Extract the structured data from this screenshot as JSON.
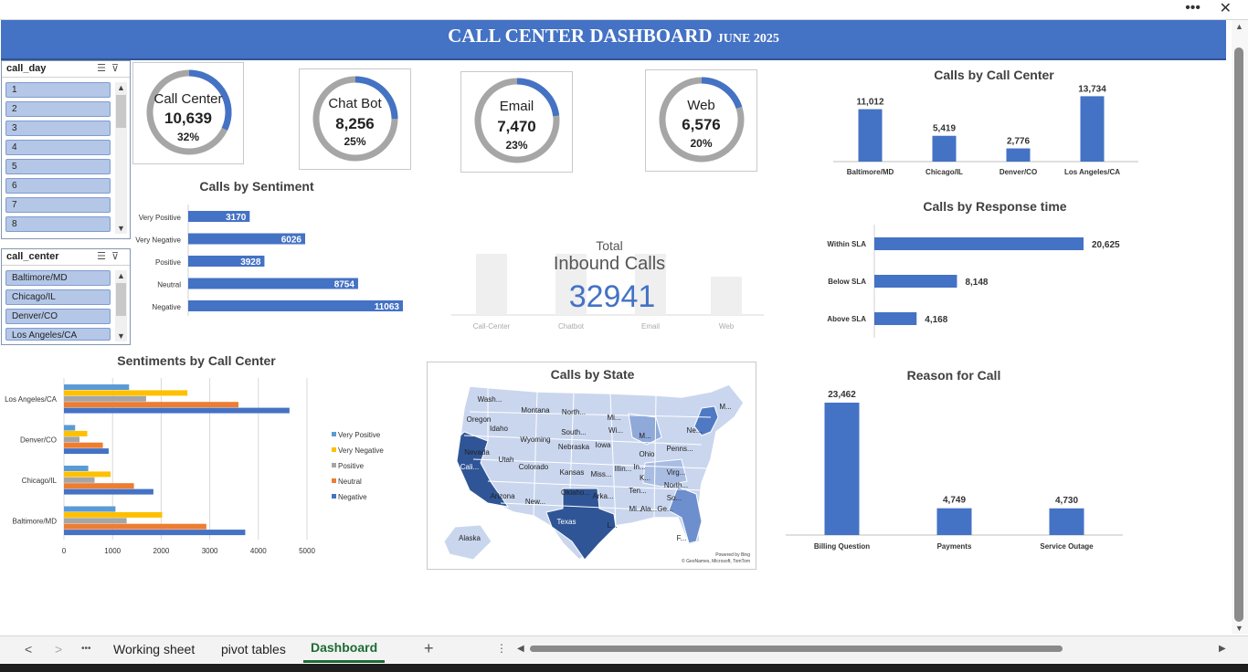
{
  "window": {
    "more_glyph": "•••",
    "close_glyph": "✕"
  },
  "banner": {
    "title": "CALL CENTER DASHBOARD",
    "subtitle": "JUNE 2025"
  },
  "slicers": [
    {
      "title": "call_day",
      "items": [
        "1",
        "2",
        "3",
        "4",
        "5",
        "6",
        "7",
        "8"
      ]
    },
    {
      "title": "call_center",
      "items": [
        "Baltimore/MD",
        "Chicago/IL",
        "Denver/CO",
        "Los Angeles/CA"
      ]
    }
  ],
  "kpis": [
    {
      "label": "Call Center",
      "value": "10,639",
      "pct": "32%",
      "fraction": 0.32
    },
    {
      "label": "Chat Bot",
      "value": "8,256",
      "pct": "25%",
      "fraction": 0.25
    },
    {
      "label": "Email",
      "value": "7,470",
      "pct": "23%",
      "fraction": 0.23
    },
    {
      "label": "Web",
      "value": "6,576",
      "pct": "20%",
      "fraction": 0.2
    }
  ],
  "colors": {
    "accent": "#4472c4",
    "ring_rest": "#a6a6a6",
    "yellow": "#ffc000",
    "gray": "#a5a5a5",
    "orange": "#ed7d31",
    "lightblue": "#5b9bd5",
    "banner": "#4472c4"
  },
  "total": {
    "label1": "Total",
    "label2": "Inbound Calls",
    "value": "32941",
    "bg_labels": [
      "Call-Center",
      "Chatbot",
      "Email",
      "Web"
    ]
  },
  "tabs": {
    "items": [
      "Working sheet",
      "pivot tables",
      "Dashboard"
    ],
    "active": "Dashboard",
    "add": "+",
    "dots": "•••"
  },
  "map": {
    "title": "Calls by State",
    "credit1": "Powered by Bing",
    "credit2": "© GeoNames, Microsoft, TomTom",
    "labels": [
      "Wash...",
      "Montana",
      "North...",
      "Mi...",
      "Oregon",
      "Idaho",
      "South...",
      "Wi...",
      "M...",
      "Wyoming",
      "Nebraska",
      "Iowa",
      "Ohio",
      "Penns...",
      "Ne...",
      "Nevada",
      "Utah",
      "Colorado",
      "Kansas",
      "Miss...",
      "Illin...",
      "In...",
      "Virg...",
      "Cali...",
      "K...",
      "North...",
      "Arizona",
      "New...",
      "Oklaho...",
      "Arka...",
      "Ten...",
      "So...",
      "Texas",
      "Mi...",
      "Ala...",
      "Ge...",
      "L...",
      "F...",
      "Alaska",
      "M..."
    ]
  },
  "chart_data": [
    {
      "type": "bar",
      "title": "Calls by Call Center",
      "categories": [
        "Baltimore/MD",
        "Chicago/IL",
        "Denver/CO",
        "Los Angeles/CA"
      ],
      "values": [
        11012,
        5419,
        2776,
        13734
      ],
      "data_labels": [
        "11,012",
        "5,419",
        "2,776",
        "13,734"
      ]
    },
    {
      "type": "bar",
      "title": "Calls by Sentiment",
      "orientation": "horizontal",
      "categories": [
        "Very Positive",
        "Very Negative",
        "Positive",
        "Neutral",
        "Negative"
      ],
      "values": [
        3170,
        6026,
        3928,
        8754,
        11063
      ],
      "data_labels": [
        "3170",
        "6026",
        "3928",
        "8754",
        "11063"
      ]
    },
    {
      "type": "bar",
      "title": "Calls by Response time",
      "orientation": "horizontal",
      "categories": [
        "Within SLA",
        "Below SLA",
        "Above SLA"
      ],
      "values": [
        20625,
        8148,
        4168
      ],
      "data_labels": [
        "20,625",
        "8,148",
        "4,168"
      ]
    },
    {
      "type": "bar",
      "title": "Reason for Call",
      "categories": [
        "Billing Question",
        "Payments",
        "Service Outage"
      ],
      "values": [
        23462,
        4749,
        4730
      ],
      "data_labels": [
        "23,462",
        "4,749",
        "4,730"
      ]
    },
    {
      "type": "bar",
      "title": "Sentiments by Call Center",
      "orientation": "horizontal",
      "categories": [
        "Los Angeles/CA",
        "Denver/CO",
        "Chicago/IL",
        "Baltimore/MD"
      ],
      "xlim": [
        0,
        5000
      ],
      "xticks": [
        "0",
        "1000",
        "2000",
        "3000",
        "4000",
        "5000"
      ],
      "legend_position": "right",
      "grid": true,
      "series": [
        {
          "name": "Very Positive",
          "values": [
            1340,
            230,
            500,
            1060
          ]
        },
        {
          "name": "Very Negative",
          "values": [
            2540,
            480,
            960,
            2020
          ]
        },
        {
          "name": "Positive",
          "values": [
            1690,
            320,
            630,
            1290
          ]
        },
        {
          "name": "Neutral",
          "values": [
            3590,
            800,
            1440,
            2930
          ]
        },
        {
          "name": "Negative",
          "values": [
            4640,
            920,
            1840,
            3730
          ]
        }
      ]
    }
  ]
}
